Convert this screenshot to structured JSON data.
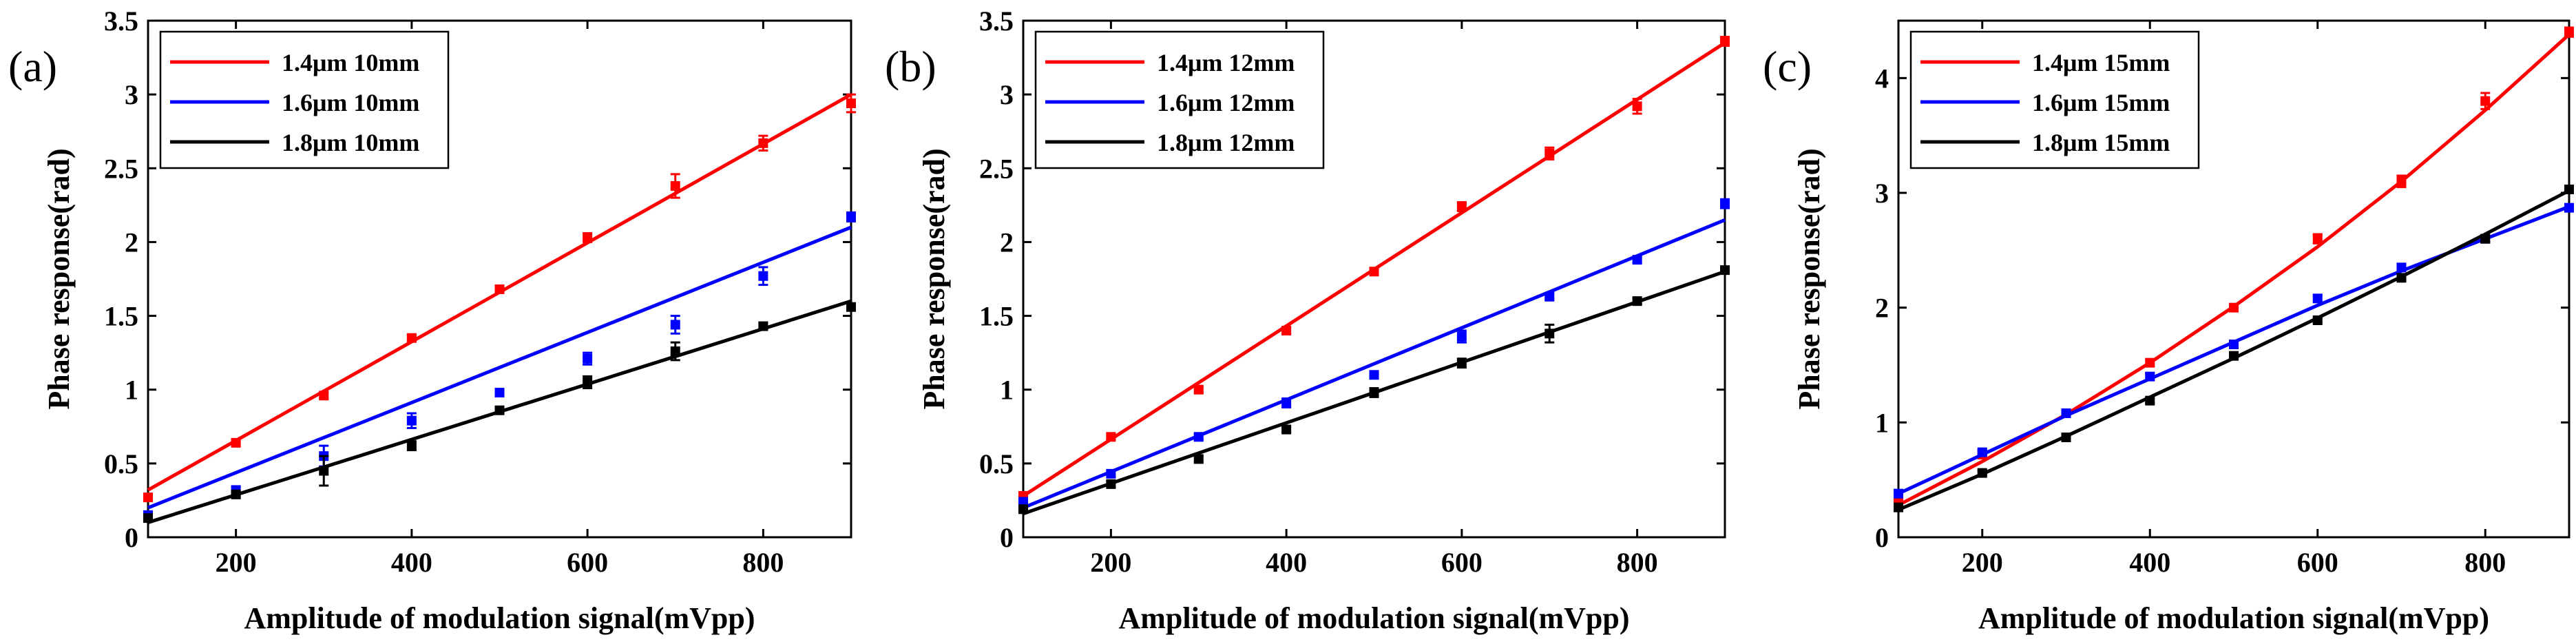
{
  "chart_data": [
    {
      "type": "line",
      "panel_label": "(a)",
      "xlabel": "Amplitude of modulation signal(mVpp)",
      "ylabel": "Phase response(rad)",
      "xlim": [
        100,
        900
      ],
      "ylim": [
        0,
        3.5
      ],
      "xticks": [
        "200",
        "400",
        "600",
        "800"
      ],
      "yticks": [
        "0",
        "0.5",
        "1",
        "1.5",
        "2",
        "2.5",
        "3",
        "3.5"
      ],
      "legend_position": "top-left",
      "series": [
        {
          "name": "1.4μm 10mm",
          "color": "#ff0000",
          "x": [
            100,
            200,
            300,
            400,
            500,
            600,
            700,
            800,
            900
          ],
          "values": [
            0.27,
            0.64,
            0.96,
            1.35,
            1.68,
            2.03,
            2.38,
            2.67,
            2.94
          ],
          "errors": [
            0.02,
            0.02,
            0.02,
            0.02,
            0.02,
            0.03,
            0.08,
            0.05,
            0.06
          ],
          "fit": [
            0.32,
            3.0
          ]
        },
        {
          "name": "1.6μm 10mm",
          "color": "#0000ff",
          "x": [
            100,
            200,
            300,
            400,
            500,
            600,
            700,
            800,
            900
          ],
          "values": [
            0.15,
            0.32,
            0.55,
            0.79,
            0.98,
            1.21,
            1.44,
            1.77,
            2.17
          ],
          "errors": [
            0.02,
            0.02,
            0.07,
            0.05,
            0.02,
            0.04,
            0.06,
            0.06,
            0.03
          ],
          "fit": [
            0.2,
            2.1
          ]
        },
        {
          "name": "1.8μm 10mm",
          "color": "#000000",
          "x": [
            100,
            200,
            300,
            400,
            500,
            600,
            700,
            800,
            900
          ],
          "values": [
            0.13,
            0.29,
            0.45,
            0.62,
            0.86,
            1.05,
            1.26,
            1.43,
            1.56
          ],
          "errors": [
            0.02,
            0.02,
            0.1,
            0.03,
            0.02,
            0.04,
            0.06,
            0.02,
            0.02
          ],
          "fit": [
            0.1,
            1.6
          ]
        }
      ]
    },
    {
      "type": "line",
      "panel_label": "(b)",
      "xlabel": "Amplitude of modulation signal(mVpp)",
      "ylabel": "Phase response(rad)",
      "xlim": [
        100,
        900
      ],
      "ylim": [
        0,
        3.5
      ],
      "xticks": [
        "200",
        "400",
        "600",
        "800"
      ],
      "yticks": [
        "0",
        "0.5",
        "1",
        "1.5",
        "2",
        "2.5",
        "3",
        "3.5"
      ],
      "legend_position": "top-left",
      "series": [
        {
          "name": "1.4μm 12mm",
          "color": "#ff0000",
          "x": [
            100,
            200,
            300,
            400,
            500,
            600,
            700,
            800,
            900
          ],
          "values": [
            0.28,
            0.68,
            1.0,
            1.4,
            1.8,
            2.24,
            2.6,
            2.92,
            3.36
          ],
          "errors": [
            0.02,
            0.02,
            0.02,
            0.02,
            0.02,
            0.03,
            0.04,
            0.05,
            0.03
          ],
          "fit": [
            0.28,
            3.35
          ]
        },
        {
          "name": "1.6μm 12mm",
          "color": "#0000ff",
          "x": [
            100,
            200,
            300,
            400,
            500,
            600,
            700,
            800,
            900
          ],
          "values": [
            0.24,
            0.43,
            0.68,
            0.91,
            1.1,
            1.36,
            1.63,
            1.88,
            2.26
          ],
          "errors": [
            0.02,
            0.02,
            0.02,
            0.03,
            0.02,
            0.04,
            0.02,
            0.02,
            0.03
          ],
          "fit": [
            0.2,
            2.15
          ]
        },
        {
          "name": "1.8μm 12mm",
          "color": "#000000",
          "x": [
            100,
            200,
            300,
            400,
            500,
            600,
            700,
            800,
            900
          ],
          "values": [
            0.19,
            0.36,
            0.53,
            0.73,
            0.98,
            1.18,
            1.38,
            1.6,
            1.81
          ],
          "errors": [
            0.02,
            0.02,
            0.02,
            0.02,
            0.03,
            0.03,
            0.06,
            0.02,
            0.02
          ],
          "fit": [
            0.16,
            1.8
          ]
        }
      ]
    },
    {
      "type": "line",
      "panel_label": "(c)",
      "xlabel": "Amplitude of modulation signal(mVpp)",
      "ylabel": "Phase response(rad)",
      "xlim": [
        100,
        900
      ],
      "ylim": [
        0,
        4.5
      ],
      "xticks": [
        "200",
        "400",
        "600",
        "800"
      ],
      "yticks": [
        "0",
        "1",
        "2",
        "3",
        "4"
      ],
      "legend_position": "top-left",
      "series": [
        {
          "name": "1.4μm 15mm",
          "color": "#ff0000",
          "x": [
            100,
            200,
            300,
            400,
            500,
            600,
            700,
            800,
            900
          ],
          "values": [
            0.3,
            0.72,
            1.08,
            1.52,
            2.0,
            2.6,
            3.1,
            3.8,
            4.4
          ],
          "errors": [
            0.02,
            0.03,
            0.02,
            0.03,
            0.03,
            0.04,
            0.05,
            0.07,
            0.04
          ],
          "fit_points": [
            0.28,
            0.66,
            1.07,
            1.52,
            2.01,
            2.53,
            3.1,
            3.72,
            4.38
          ]
        },
        {
          "name": "1.6μm 15mm",
          "color": "#0000ff",
          "x": [
            100,
            200,
            300,
            400,
            500,
            600,
            700,
            800,
            900
          ],
          "values": [
            0.38,
            0.74,
            1.08,
            1.4,
            1.68,
            2.08,
            2.35,
            2.6,
            2.87
          ],
          "errors": [
            0.02,
            0.02,
            0.02,
            0.03,
            0.03,
            0.03,
            0.03,
            0.03,
            0.03
          ],
          "fit_points": [
            0.38,
            0.72,
            1.06,
            1.38,
            1.7,
            2.02,
            2.32,
            2.6,
            2.88
          ]
        },
        {
          "name": "1.8μm 15mm",
          "color": "#000000",
          "x": [
            100,
            200,
            300,
            400,
            500,
            600,
            700,
            800,
            900
          ],
          "values": [
            0.26,
            0.56,
            0.87,
            1.19,
            1.58,
            1.89,
            2.26,
            2.6,
            3.03
          ],
          "errors": [
            0.02,
            0.02,
            0.02,
            0.02,
            0.02,
            0.02,
            0.03,
            0.03,
            0.02
          ],
          "fit_points": [
            0.24,
            0.55,
            0.88,
            1.22,
            1.56,
            1.91,
            2.27,
            2.64,
            3.02
          ]
        }
      ]
    }
  ]
}
